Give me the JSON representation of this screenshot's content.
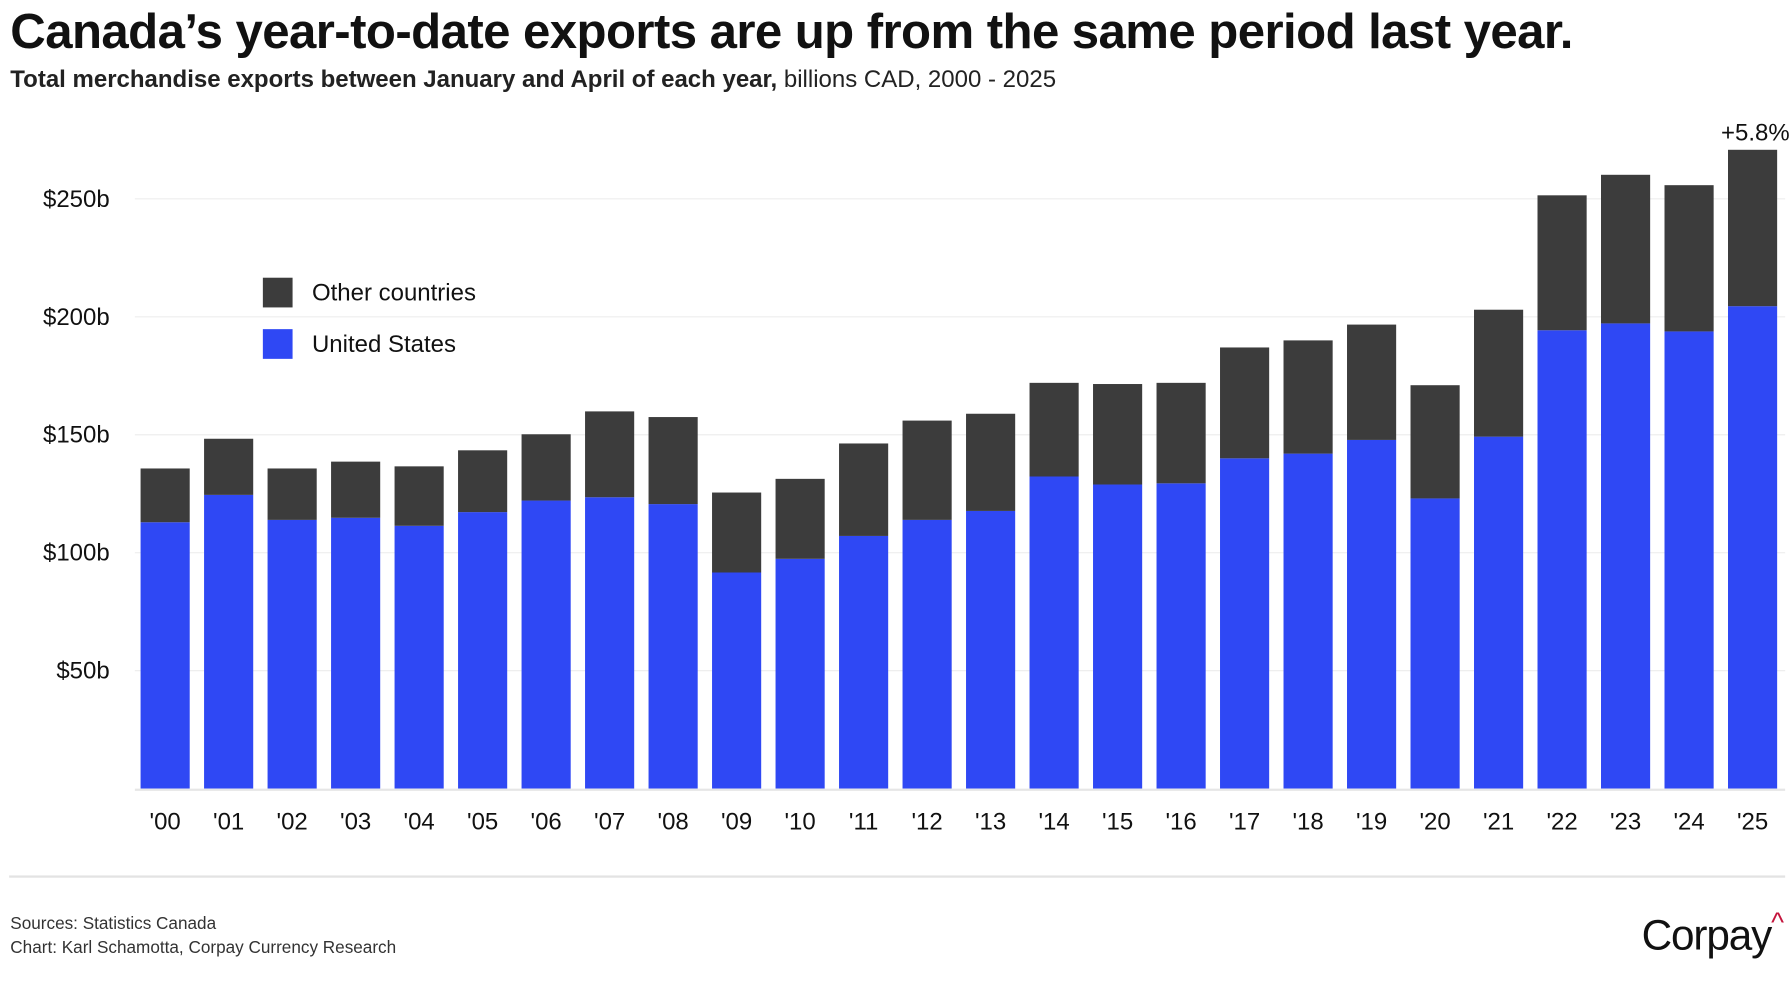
{
  "title": "Canada’s year-to-date exports are up from the same period last year.",
  "subtitle_bold": "Total merchandise exports between January and April of each year,",
  "subtitle_rest": " billions CAD, 2000 - 2025",
  "annotation": "+5.8%",
  "footer": {
    "sources": "Sources: Statistics Canada",
    "chart": "Chart: Karl Schamotta, Corpay Currency Research",
    "logo": "Corpay",
    "logo_mark": "^"
  },
  "colors": {
    "us": "#2f48f4",
    "other": "#3c3c3c",
    "grid": "#eeeeee"
  },
  "chart_data": {
    "type": "bar",
    "stacked": true,
    "title": "Canada’s year-to-date exports are up from the same period last year.",
    "xlabel": "",
    "ylabel": "billions CAD",
    "ylim": [
      0,
      275
    ],
    "yticks": [
      50,
      100,
      150,
      200,
      250
    ],
    "ytick_labels": [
      "$50b",
      "$100b",
      "$150b",
      "$200b",
      "$250b"
    ],
    "grid": true,
    "legend_position": "top-left",
    "categories": [
      "'00",
      "'01",
      "'02",
      "'03",
      "'04",
      "'05",
      "'06",
      "'07",
      "'08",
      "'09",
      "'10",
      "'11",
      "'12",
      "'13",
      "'14",
      "'15",
      "'16",
      "'17",
      "'18",
      "'19",
      "'20",
      "'21",
      "'22",
      "'23",
      "'24",
      "'25"
    ],
    "series": [
      {
        "name": "United States",
        "color": "#2f48f4",
        "values": [
          112.9,
          124.5,
          113.9,
          114.8,
          111.4,
          117.2,
          122.1,
          123.5,
          120.6,
          91.6,
          97.4,
          107.1,
          113.9,
          117.7,
          132.3,
          128.9,
          129.4,
          140.0,
          142.0,
          147.8,
          123.0,
          149.2,
          194.3,
          197.2,
          193.8,
          204.5
        ]
      },
      {
        "name": "Other countries",
        "color": "#3c3c3c",
        "values": [
          22.8,
          23.8,
          21.8,
          23.8,
          25.2,
          26.2,
          28.1,
          36.4,
          36.9,
          33.9,
          33.9,
          39.2,
          42.1,
          41.2,
          39.7,
          42.6,
          42.6,
          47.0,
          48.0,
          48.9,
          48.0,
          53.8,
          57.2,
          63.0,
          62.0,
          66.3
        ]
      }
    ],
    "legend": [
      "Other countries",
      "United States"
    ]
  }
}
